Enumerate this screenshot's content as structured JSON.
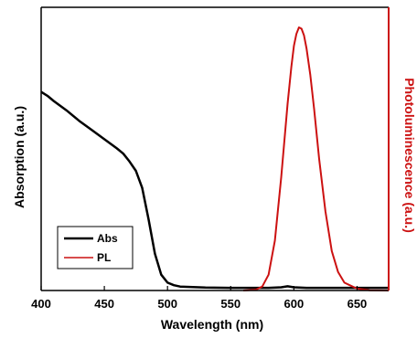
{
  "colors": {
    "abs": "#000000",
    "pl": "#cc1111",
    "axis_left": "#000000",
    "axis_right": "#cc1111"
  },
  "chart_data": {
    "type": "line",
    "title": "",
    "xlabel": "Wavelength (nm)",
    "ylabel": "Absorption (a.u.)",
    "y2label": "Photoluminescence (a.u.)",
    "xlim": [
      400,
      675
    ],
    "ylim": [
      0,
      1
    ],
    "x_ticks": [
      400,
      450,
      500,
      550,
      600,
      650
    ],
    "x_tick_labels": [
      "400",
      "450",
      "500",
      "550",
      "600",
      "650"
    ],
    "grid": false,
    "legend_position": "bottom-left",
    "series": [
      {
        "name": "Abs",
        "color": "#000000",
        "axis": "left",
        "x": [
          400,
          405,
          410,
          420,
          430,
          440,
          450,
          460,
          465,
          470,
          475,
          480,
          485,
          490,
          495,
          500,
          505,
          510,
          520,
          530,
          550,
          570,
          580,
          590,
          595,
          600,
          610,
          620,
          640,
          675
        ],
        "y": [
          0.755,
          0.74,
          0.72,
          0.685,
          0.645,
          0.61,
          0.575,
          0.54,
          0.52,
          0.49,
          0.455,
          0.39,
          0.27,
          0.14,
          0.06,
          0.03,
          0.02,
          0.015,
          0.013,
          0.011,
          0.01,
          0.01,
          0.01,
          0.012,
          0.016,
          0.012,
          0.01,
          0.01,
          0.01,
          0.01
        ]
      },
      {
        "name": "PL",
        "color": "#cc1111",
        "axis": "right",
        "x": [
          560,
          570,
          575,
          580,
          585,
          590,
          595,
          598,
          600,
          602,
          604,
          606,
          608,
          610,
          613,
          616,
          620,
          625,
          630,
          635,
          640,
          650,
          660,
          675
        ],
        "y": [
          0.0,
          0.003,
          0.015,
          0.06,
          0.19,
          0.43,
          0.71,
          0.85,
          0.93,
          0.975,
          1.0,
          0.995,
          0.97,
          0.92,
          0.82,
          0.69,
          0.5,
          0.3,
          0.15,
          0.07,
          0.03,
          0.007,
          0.001,
          0.0
        ]
      }
    ]
  }
}
